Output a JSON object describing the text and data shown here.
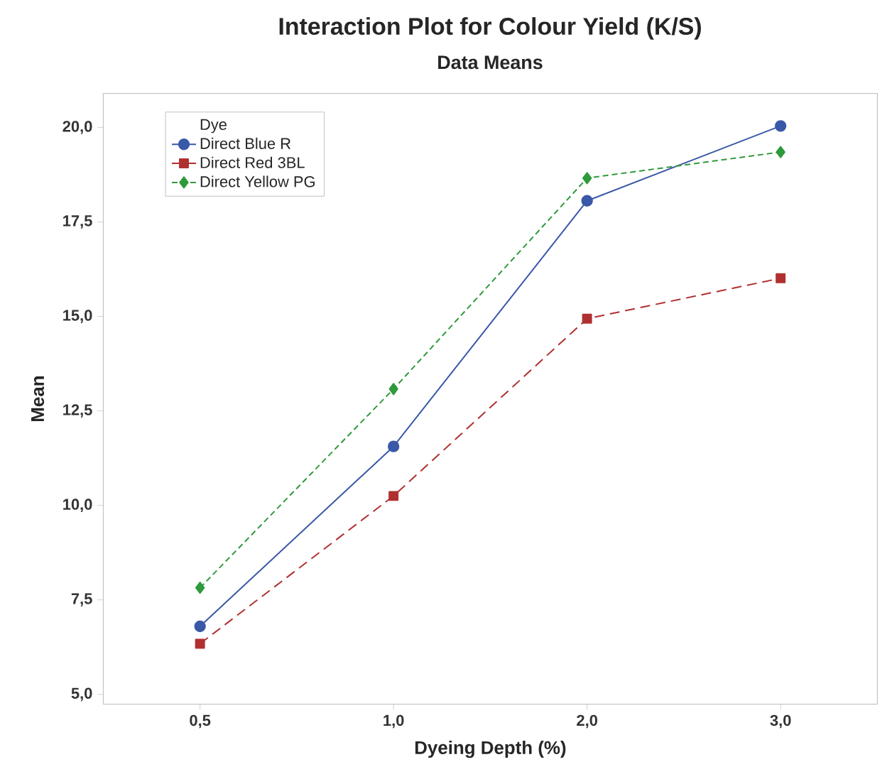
{
  "chart_data": {
    "type": "line",
    "title": "Interaction Plot for Colour Yield (K/S)",
    "subtitle": "Data Means",
    "xlabel": "Dyeing Depth (%)",
    "ylabel": "Mean",
    "legend_title": "Dye",
    "categories": [
      "0,5",
      "1,0",
      "2,0",
      "3,0"
    ],
    "series": [
      {
        "name": "Direct Blue R",
        "color": "#3a58a8",
        "marker": "circle",
        "line_style": "solid",
        "values": [
          6.8,
          11.56,
          18.06,
          20.04
        ]
      },
      {
        "name": "Direct Red 3BL",
        "color": "#b03030",
        "marker": "square",
        "line_style": "dashed",
        "values": [
          6.34,
          10.25,
          14.94,
          16.01
        ]
      },
      {
        "name": "Direct Yellow PG",
        "color": "#2e9a3c",
        "marker": "diamond",
        "line_style": "dotted",
        "values": [
          7.82,
          13.08,
          18.66,
          19.35
        ]
      }
    ],
    "ylim": [
      4.74,
      20.9
    ],
    "yticks": [
      {
        "value": 5,
        "label": "5,0"
      },
      {
        "value": 7.5,
        "label": "7,5"
      },
      {
        "value": 10,
        "label": "10,0"
      },
      {
        "value": 12.5,
        "label": "12,5"
      },
      {
        "value": 15,
        "label": "15,0"
      },
      {
        "value": 17.5,
        "label": "17,5"
      },
      {
        "value": 20,
        "label": "20,0"
      }
    ],
    "legend": "top left",
    "grid": false
  }
}
